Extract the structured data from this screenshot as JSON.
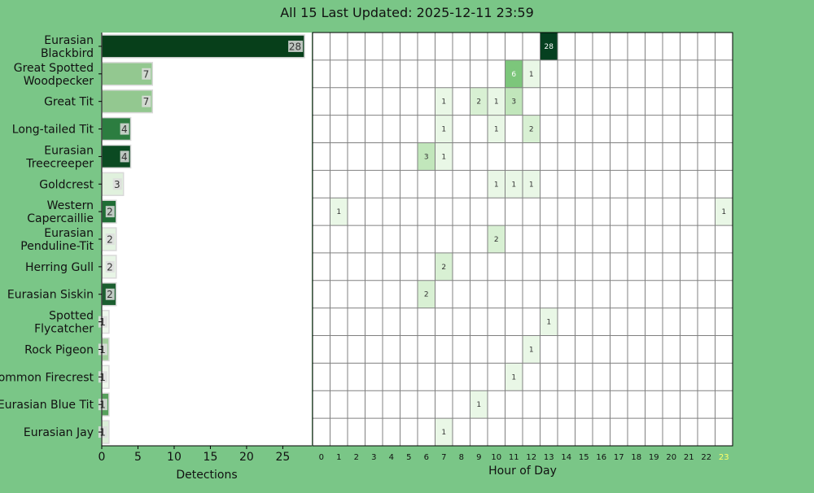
{
  "title": "All 15 Last Updated: 2025-12-11 23:59",
  "colors": {
    "background": "#7ac687",
    "highlight_tick": "#ffff66"
  },
  "chart_data": [
    {
      "type": "bar",
      "orientation": "horizontal",
      "categories": [
        "Eurasian\nBlackbird",
        "Great Spotted\nWoodpecker",
        "Great Tit",
        "Long-tailed Tit",
        "Eurasian\nTreecreeper",
        "Goldcrest",
        "Western\nCapercaillie",
        "Eurasian\nPenduline-Tit",
        "Herring Gull",
        "Eurasian Siskin",
        "Spotted\nFlycatcher",
        "Rock Pigeon",
        "Common Firecrest",
        "Eurasian Blue Tit",
        "Eurasian Jay"
      ],
      "values": [
        28,
        7,
        7,
        4,
        4,
        3,
        2,
        2,
        2,
        2,
        1,
        1,
        1,
        1,
        1
      ],
      "bar_colors": [
        "#073f1a",
        "#93c890",
        "#93c890",
        "#2c7d40",
        "#0b4a22",
        "#e0f1dd",
        "#1f6d35",
        "#e3f3e1",
        "#e8f5e6",
        "#1b5e2f",
        "#eef7ec",
        "#a1cf9c",
        "#f0f8ee",
        "#56a05c",
        "#dcefd9"
      ],
      "xlabel": "Detections",
      "xlim": [
        0,
        29
      ],
      "xticks": [
        0,
        5,
        10,
        15,
        20,
        25
      ]
    },
    {
      "type": "heatmap",
      "xlabel": "Hour of Day",
      "x": [
        "0",
        "1",
        "2",
        "3",
        "4",
        "5",
        "6",
        "7",
        "8",
        "9",
        "10",
        "11",
        "12",
        "13",
        "14",
        "15",
        "16",
        "17",
        "18",
        "19",
        "20",
        "21",
        "22",
        "23"
      ],
      "highlight_hour": "23",
      "cells": [
        {
          "row": 0,
          "hour": 13,
          "value": 28
        },
        {
          "row": 1,
          "hour": 11,
          "value": 6
        },
        {
          "row": 1,
          "hour": 12,
          "value": 1
        },
        {
          "row": 2,
          "hour": 7,
          "value": 1
        },
        {
          "row": 2,
          "hour": 9,
          "value": 2
        },
        {
          "row": 2,
          "hour": 10,
          "value": 1
        },
        {
          "row": 2,
          "hour": 11,
          "value": 3
        },
        {
          "row": 3,
          "hour": 7,
          "value": 1
        },
        {
          "row": 3,
          "hour": 10,
          "value": 1
        },
        {
          "row": 3,
          "hour": 12,
          "value": 2
        },
        {
          "row": 4,
          "hour": 6,
          "value": 3
        },
        {
          "row": 4,
          "hour": 7,
          "value": 1
        },
        {
          "row": 5,
          "hour": 10,
          "value": 1
        },
        {
          "row": 5,
          "hour": 11,
          "value": 1
        },
        {
          "row": 5,
          "hour": 12,
          "value": 1
        },
        {
          "row": 6,
          "hour": 1,
          "value": 1
        },
        {
          "row": 6,
          "hour": 23,
          "value": 1
        },
        {
          "row": 7,
          "hour": 10,
          "value": 2
        },
        {
          "row": 8,
          "hour": 7,
          "value": 2
        },
        {
          "row": 9,
          "hour": 6,
          "value": 2
        },
        {
          "row": 10,
          "hour": 13,
          "value": 1
        },
        {
          "row": 11,
          "hour": 12,
          "value": 1
        },
        {
          "row": 12,
          "hour": 11,
          "value": 1
        },
        {
          "row": 13,
          "hour": 9,
          "value": 1
        },
        {
          "row": 14,
          "hour": 7,
          "value": 1
        }
      ]
    }
  ]
}
